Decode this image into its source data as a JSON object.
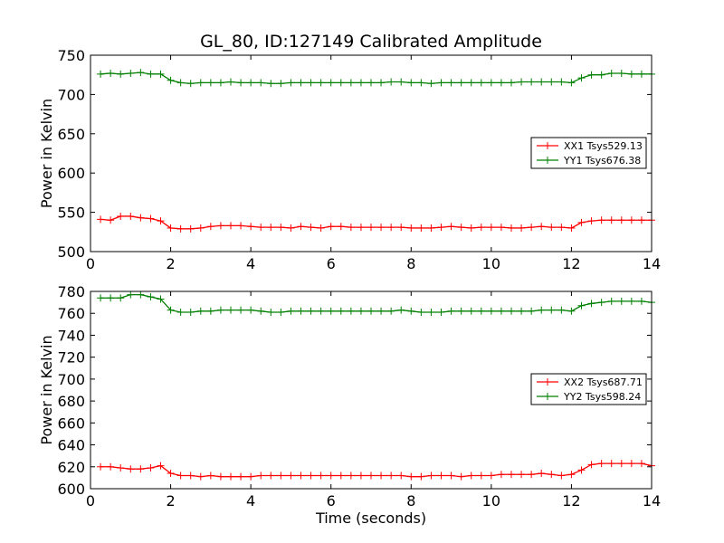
{
  "title": "GL_80, ID:127149 Calibrated Amplitude",
  "chart_data": [
    {
      "type": "line",
      "ylabel": "Power in Kelvin",
      "xlabel": "",
      "xlim": [
        0,
        14
      ],
      "ylim": [
        500,
        750
      ],
      "xticks": [
        "0",
        "2",
        "4",
        "6",
        "8",
        "10",
        "12",
        "14"
      ],
      "yticks": [
        "500",
        "550",
        "600",
        "650",
        "700",
        "750"
      ],
      "legend_position": "center-right",
      "x": [
        0.25,
        0.5,
        0.75,
        1.0,
        1.25,
        1.5,
        1.75,
        2.0,
        2.25,
        2.5,
        2.75,
        3.0,
        3.25,
        3.5,
        3.75,
        4.0,
        4.25,
        4.5,
        4.75,
        5.0,
        5.25,
        5.5,
        5.75,
        6.0,
        6.25,
        6.5,
        6.75,
        7.0,
        7.25,
        7.5,
        7.75,
        8.0,
        8.25,
        8.5,
        8.75,
        9.0,
        9.25,
        9.5,
        9.75,
        10.0,
        10.25,
        10.5,
        10.75,
        11.0,
        11.25,
        11.5,
        11.75,
        12.0,
        12.25,
        12.5,
        12.75,
        13.0,
        13.25,
        13.5,
        13.75,
        14.0
      ],
      "series": [
        {
          "name": "XX1 Tsys529.13",
          "color": "#ff0000",
          "values": [
            541,
            540,
            545,
            545,
            543,
            542,
            539,
            530,
            529,
            529,
            530,
            532,
            533,
            533,
            533,
            532,
            531,
            531,
            531,
            530,
            532,
            531,
            530,
            532,
            532,
            531,
            531,
            531,
            531,
            531,
            531,
            530,
            530,
            530,
            531,
            532,
            531,
            530,
            531,
            531,
            531,
            530,
            530,
            531,
            532,
            531,
            531,
            530,
            537,
            539,
            540,
            540,
            540,
            540,
            540,
            540
          ]
        },
        {
          "name": "YY1 Tsys676.38",
          "color": "#008000",
          "values": [
            726,
            727,
            726,
            727,
            728,
            726,
            726,
            718,
            715,
            714,
            715,
            715,
            715,
            716,
            715,
            715,
            715,
            714,
            714,
            715,
            715,
            715,
            715,
            715,
            715,
            715,
            715,
            715,
            715,
            716,
            716,
            715,
            715,
            714,
            715,
            715,
            715,
            715,
            715,
            715,
            715,
            715,
            716,
            716,
            716,
            716,
            716,
            715,
            721,
            725,
            725,
            727,
            727,
            726,
            726,
            726
          ]
        }
      ]
    },
    {
      "type": "line",
      "ylabel": "Power in Kelvin",
      "xlabel": "Time (seconds)",
      "xlim": [
        0,
        14
      ],
      "ylim": [
        600,
        780
      ],
      "xticks": [
        "0",
        "2",
        "4",
        "6",
        "8",
        "10",
        "12",
        "14"
      ],
      "yticks": [
        "600",
        "620",
        "640",
        "660",
        "680",
        "700",
        "720",
        "740",
        "760",
        "780"
      ],
      "legend_position": "center-right",
      "x": [
        0.25,
        0.5,
        0.75,
        1.0,
        1.25,
        1.5,
        1.75,
        2.0,
        2.25,
        2.5,
        2.75,
        3.0,
        3.25,
        3.5,
        3.75,
        4.0,
        4.25,
        4.5,
        4.75,
        5.0,
        5.25,
        5.5,
        5.75,
        6.0,
        6.25,
        6.5,
        6.75,
        7.0,
        7.25,
        7.5,
        7.75,
        8.0,
        8.25,
        8.5,
        8.75,
        9.0,
        9.25,
        9.5,
        9.75,
        10.0,
        10.25,
        10.5,
        10.75,
        11.0,
        11.25,
        11.5,
        11.75,
        12.0,
        12.25,
        12.5,
        12.75,
        13.0,
        13.25,
        13.5,
        13.75,
        14.0
      ],
      "series": [
        {
          "name": "XX2 Tsys687.71",
          "color": "#ff0000",
          "values": [
            620,
            620,
            619,
            618,
            618,
            619,
            621,
            614,
            612,
            612,
            611,
            612,
            611,
            611,
            611,
            611,
            612,
            612,
            612,
            612,
            612,
            612,
            612,
            612,
            612,
            612,
            612,
            612,
            612,
            612,
            612,
            611,
            611,
            612,
            612,
            612,
            611,
            612,
            612,
            612,
            613,
            613,
            613,
            613,
            614,
            613,
            612,
            613,
            617,
            622,
            623,
            623,
            623,
            623,
            623,
            621
          ]
        },
        {
          "name": "YY2 Tsys598.24",
          "color": "#008000",
          "values": [
            774,
            774,
            774,
            777,
            777,
            775,
            773,
            763,
            761,
            761,
            762,
            762,
            763,
            763,
            763,
            763,
            762,
            761,
            761,
            762,
            762,
            762,
            762,
            762,
            762,
            762,
            762,
            762,
            762,
            762,
            763,
            762,
            761,
            761,
            761,
            762,
            762,
            762,
            762,
            762,
            762,
            762,
            762,
            762,
            763,
            763,
            763,
            762,
            767,
            769,
            770,
            771,
            771,
            771,
            771,
            770
          ]
        }
      ]
    }
  ]
}
